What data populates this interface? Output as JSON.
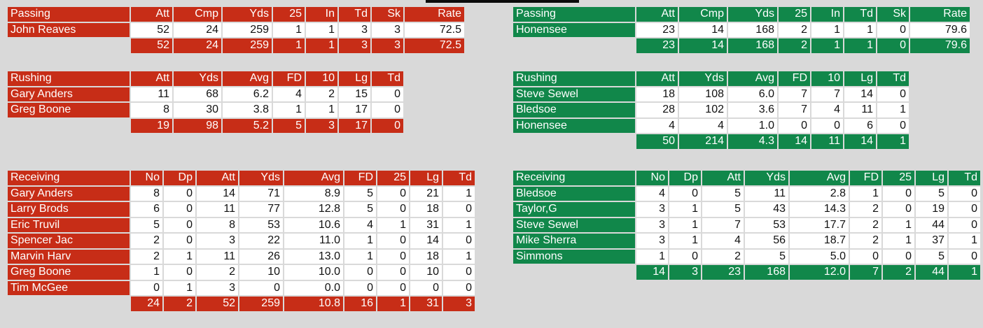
{
  "colors": {
    "away": "#c72d17",
    "home": "#11874a"
  },
  "away": {
    "passing": {
      "headers": [
        "Passing",
        "Att",
        "Cmp",
        "Yds",
        "25",
        "In",
        "Td",
        "Sk",
        "Rate"
      ],
      "rows": [
        [
          "John Reaves",
          "52",
          "24",
          "259",
          "1",
          "1",
          "3",
          "3",
          "72.5"
        ]
      ],
      "total": [
        "52",
        "24",
        "259",
        "1",
        "1",
        "3",
        "3",
        "72.5"
      ]
    },
    "rushing": {
      "headers": [
        "Rushing",
        "Att",
        "Yds",
        "Avg",
        "FD",
        "10",
        "Lg",
        "Td"
      ],
      "rows": [
        [
          "Gary Anders",
          "11",
          "68",
          "6.2",
          "4",
          "2",
          "15",
          "0"
        ],
        [
          "Greg Boone",
          "8",
          "30",
          "3.8",
          "1",
          "1",
          "17",
          "0"
        ]
      ],
      "total": [
        "19",
        "98",
        "5.2",
        "5",
        "3",
        "17",
        "0"
      ]
    },
    "receiving": {
      "headers": [
        "Receiving",
        "No",
        "Dp",
        "Att",
        "Yds",
        "Avg",
        "FD",
        "25",
        "Lg",
        "Td"
      ],
      "rows": [
        [
          "Gary Anders",
          "8",
          "0",
          "14",
          "71",
          "8.9",
          "5",
          "0",
          "21",
          "1"
        ],
        [
          "Larry Brods",
          "6",
          "0",
          "11",
          "77",
          "12.8",
          "5",
          "0",
          "18",
          "0"
        ],
        [
          "Eric Truvil",
          "5",
          "0",
          "8",
          "53",
          "10.6",
          "4",
          "1",
          "31",
          "1"
        ],
        [
          "Spencer Jac",
          "2",
          "0",
          "3",
          "22",
          "11.0",
          "1",
          "0",
          "14",
          "0"
        ],
        [
          "Marvin Harv",
          "2",
          "1",
          "11",
          "26",
          "13.0",
          "1",
          "0",
          "18",
          "1"
        ],
        [
          "Greg Boone",
          "1",
          "0",
          "2",
          "10",
          "10.0",
          "0",
          "0",
          "10",
          "0"
        ],
        [
          "Tim McGee",
          "0",
          "1",
          "3",
          "0",
          "0.0",
          "0",
          "0",
          "0",
          "0"
        ]
      ],
      "total": [
        "24",
        "2",
        "52",
        "259",
        "10.8",
        "16",
        "1",
        "31",
        "3"
      ]
    }
  },
  "home": {
    "passing": {
      "headers": [
        "Passing",
        "Att",
        "Cmp",
        "Yds",
        "25",
        "In",
        "Td",
        "Sk",
        "Rate"
      ],
      "rows": [
        [
          "Honensee",
          "23",
          "14",
          "168",
          "2",
          "1",
          "1",
          "0",
          "79.6"
        ]
      ],
      "total": [
        "23",
        "14",
        "168",
        "2",
        "1",
        "1",
        "0",
        "79.6"
      ]
    },
    "rushing": {
      "headers": [
        "Rushing",
        "Att",
        "Yds",
        "Avg",
        "FD",
        "10",
        "Lg",
        "Td"
      ],
      "rows": [
        [
          "Steve Sewel",
          "18",
          "108",
          "6.0",
          "7",
          "7",
          "14",
          "0"
        ],
        [
          "Bledsoe",
          "28",
          "102",
          "3.6",
          "7",
          "4",
          "11",
          "1"
        ],
        [
          "Honensee",
          "4",
          "4",
          "1.0",
          "0",
          "0",
          "6",
          "0"
        ]
      ],
      "total": [
        "50",
        "214",
        "4.3",
        "14",
        "11",
        "14",
        "1"
      ]
    },
    "receiving": {
      "headers": [
        "Receiving",
        "No",
        "Dp",
        "Att",
        "Yds",
        "Avg",
        "FD",
        "25",
        "Lg",
        "Td"
      ],
      "rows": [
        [
          "Bledsoe",
          "4",
          "0",
          "5",
          "11",
          "2.8",
          "1",
          "0",
          "5",
          "0"
        ],
        [
          "Taylor,G",
          "3",
          "1",
          "5",
          "43",
          "14.3",
          "2",
          "0",
          "19",
          "0"
        ],
        [
          "Steve Sewel",
          "3",
          "1",
          "7",
          "53",
          "17.7",
          "2",
          "1",
          "44",
          "0"
        ],
        [
          "Mike Sherra",
          "3",
          "1",
          "4",
          "56",
          "18.7",
          "2",
          "1",
          "37",
          "1"
        ],
        [
          "Simmons",
          "1",
          "0",
          "2",
          "5",
          "5.0",
          "0",
          "0",
          "5",
          "0"
        ]
      ],
      "total": [
        "14",
        "3",
        "23",
        "168",
        "12.0",
        "7",
        "2",
        "44",
        "1"
      ]
    }
  }
}
